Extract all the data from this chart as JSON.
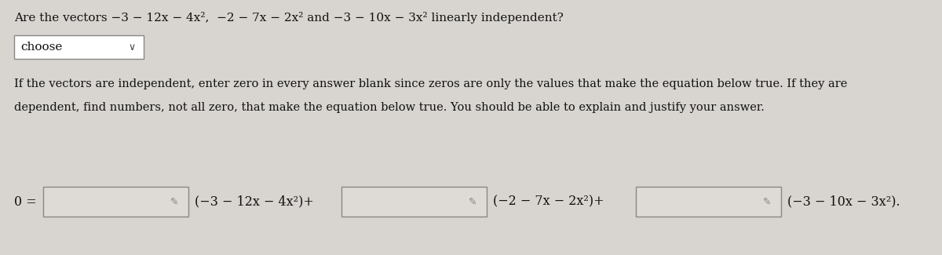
{
  "bg_color": "#d8d5d0",
  "title_line": "Are the vectors −3 − 12x − 4x²,  −2 − 7x − 2x² and −3 − 10x − 3x² linearly independent?",
  "choose_box_text": "choose",
  "paragraph_line1": "If the vectors are independent, enter zero in every answer blank since zeros are only the values that make the equation below true. If they are",
  "paragraph_line2": "dependent, find numbers, not all zero, that make the equation below true. You should be able to explain and justify your answer.",
  "equation_label": "0 =",
  "vec1": "(−3 − 12x − 4x²)+",
  "vec2": "(−2 − 7x − 2x²)+",
  "vec3": "(−3 − 10x − 3x²).",
  "box_facecolor": "#dedad5",
  "box_edgecolor": "#888888",
  "choose_edgecolor": "#888888",
  "text_color": "#111111",
  "font_size_title": 11.0,
  "font_size_para": 10.5,
  "font_size_eq": 11.5,
  "pencil_color": "#888888"
}
